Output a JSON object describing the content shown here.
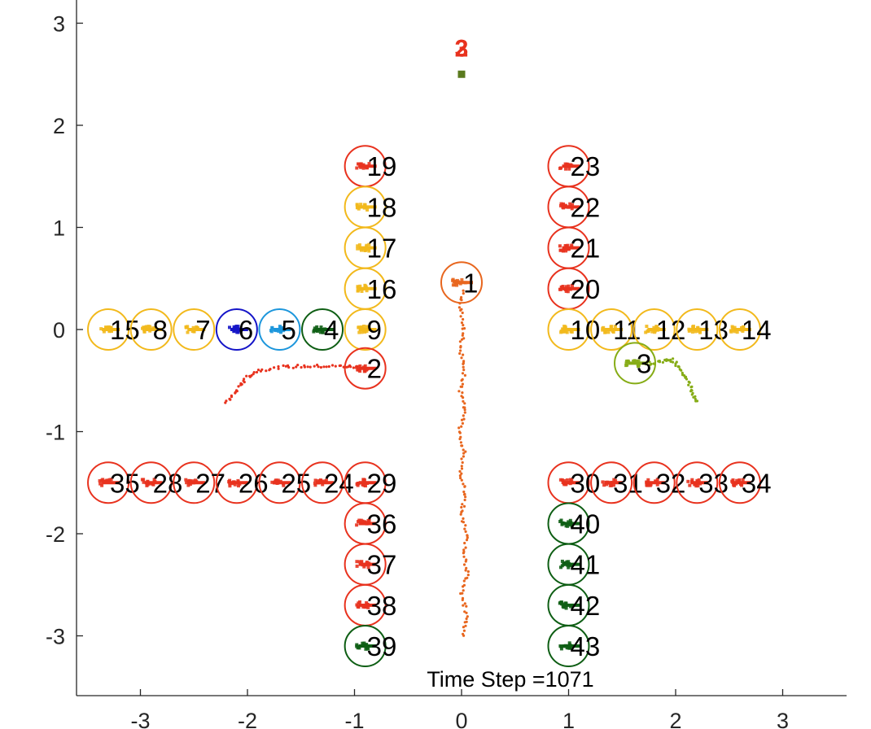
{
  "chart_data": {
    "type": "scatter",
    "title": "",
    "xlabel": "",
    "ylabel": "",
    "xlim": [
      -3.6,
      3.6
    ],
    "ylim": [
      -3.6,
      3.2
    ],
    "x_ticks": [
      -3,
      -2,
      -1,
      0,
      1,
      2,
      3
    ],
    "y_ticks": [
      -3,
      -2,
      -1,
      0,
      1,
      2,
      3
    ],
    "x_tick_labels": [
      "-3",
      "-2",
      "-1",
      "0",
      "1",
      "2",
      "3"
    ],
    "y_tick_labels": [
      "-3",
      "-2",
      "-1",
      "0",
      "1",
      "2",
      "3"
    ],
    "grid": false,
    "caption": "Time Step =1071",
    "goal_marker": {
      "x": 0.0,
      "y": 2.5,
      "color": "#5a7a1e",
      "labels": [
        "2",
        "3"
      ]
    },
    "colors": {
      "red": "#e8321e",
      "yellow": "#f2b91c",
      "dgreen": "#0e5e14",
      "blue": "#1414c8",
      "lblue": "#1c96dc",
      "orange": "#e8661e",
      "lgreen": "#86ac16"
    },
    "agents": [
      {
        "id": "19",
        "x": -0.9,
        "y": 1.6,
        "color": "red"
      },
      {
        "id": "18",
        "x": -0.9,
        "y": 1.2,
        "color": "yellow"
      },
      {
        "id": "17",
        "x": -0.9,
        "y": 0.8,
        "color": "yellow"
      },
      {
        "id": "16",
        "x": -0.9,
        "y": 0.4,
        "color": "yellow"
      },
      {
        "id": "9",
        "x": -0.9,
        "y": 0.0,
        "color": "yellow"
      },
      {
        "id": "2",
        "x": -0.9,
        "y": -0.38,
        "color": "red"
      },
      {
        "id": "23",
        "x": 1.0,
        "y": 1.6,
        "color": "red"
      },
      {
        "id": "22",
        "x": 1.0,
        "y": 1.2,
        "color": "red"
      },
      {
        "id": "21",
        "x": 1.0,
        "y": 0.8,
        "color": "red"
      },
      {
        "id": "20",
        "x": 1.0,
        "y": 0.4,
        "color": "red"
      },
      {
        "id": "10",
        "x": 1.0,
        "y": 0.0,
        "color": "yellow"
      },
      {
        "id": "11",
        "x": 1.4,
        "y": 0.0,
        "color": "yellow"
      },
      {
        "id": "12",
        "x": 1.8,
        "y": 0.0,
        "color": "yellow"
      },
      {
        "id": "13",
        "x": 2.2,
        "y": 0.0,
        "color": "yellow"
      },
      {
        "id": "14",
        "x": 2.6,
        "y": 0.0,
        "color": "yellow"
      },
      {
        "id": "15",
        "x": -3.3,
        "y": 0.0,
        "color": "yellow"
      },
      {
        "id": "8",
        "x": -2.9,
        "y": 0.0,
        "color": "yellow"
      },
      {
        "id": "7",
        "x": -2.5,
        "y": 0.0,
        "color": "yellow"
      },
      {
        "id": "6",
        "x": -2.1,
        "y": 0.0,
        "color": "blue"
      },
      {
        "id": "5",
        "x": -1.7,
        "y": 0.0,
        "color": "lblue"
      },
      {
        "id": "4",
        "x": -1.3,
        "y": 0.0,
        "color": "dgreen"
      },
      {
        "id": "1",
        "x": 0.0,
        "y": 0.46,
        "color": "orange"
      },
      {
        "id": "3",
        "x": 1.62,
        "y": -0.33,
        "color": "lgreen"
      },
      {
        "id": "35",
        "x": -3.3,
        "y": -1.5,
        "color": "red"
      },
      {
        "id": "28",
        "x": -2.9,
        "y": -1.5,
        "color": "red"
      },
      {
        "id": "27",
        "x": -2.5,
        "y": -1.5,
        "color": "red"
      },
      {
        "id": "26",
        "x": -2.1,
        "y": -1.5,
        "color": "red"
      },
      {
        "id": "25",
        "x": -1.7,
        "y": -1.5,
        "color": "red"
      },
      {
        "id": "24",
        "x": -1.3,
        "y": -1.5,
        "color": "red"
      },
      {
        "id": "29",
        "x": -0.9,
        "y": -1.5,
        "color": "red"
      },
      {
        "id": "36",
        "x": -0.9,
        "y": -1.9,
        "color": "red"
      },
      {
        "id": "37",
        "x": -0.9,
        "y": -2.3,
        "color": "red"
      },
      {
        "id": "38",
        "x": -0.9,
        "y": -2.7,
        "color": "red"
      },
      {
        "id": "39",
        "x": -0.9,
        "y": -3.1,
        "color": "dgreen"
      },
      {
        "id": "30",
        "x": 1.0,
        "y": -1.5,
        "color": "red"
      },
      {
        "id": "31",
        "x": 1.4,
        "y": -1.5,
        "color": "red"
      },
      {
        "id": "32",
        "x": 1.8,
        "y": -1.5,
        "color": "red"
      },
      {
        "id": "33",
        "x": 2.2,
        "y": -1.5,
        "color": "red"
      },
      {
        "id": "34",
        "x": 2.6,
        "y": -1.5,
        "color": "red"
      },
      {
        "id": "40",
        "x": 1.0,
        "y": -1.9,
        "color": "dgreen"
      },
      {
        "id": "41",
        "x": 1.0,
        "y": -2.3,
        "color": "dgreen"
      },
      {
        "id": "42",
        "x": 1.0,
        "y": -2.7,
        "color": "dgreen"
      },
      {
        "id": "43",
        "x": 1.0,
        "y": -3.1,
        "color": "dgreen"
      }
    ],
    "trajectories": [
      {
        "agent": "1",
        "color": "orange",
        "points": [
          [
            0.02,
            -3.0
          ],
          [
            0.05,
            -2.8
          ],
          [
            0.0,
            -2.6
          ],
          [
            0.06,
            -2.4
          ],
          [
            0.02,
            -2.2
          ],
          [
            0.05,
            -2.0
          ],
          [
            0.0,
            -1.8
          ],
          [
            0.04,
            -1.6
          ],
          [
            -0.01,
            -1.4
          ],
          [
            0.03,
            -1.2
          ],
          [
            -0.02,
            -1.0
          ],
          [
            0.03,
            -0.8
          ],
          [
            -0.01,
            -0.6
          ],
          [
            0.03,
            -0.4
          ],
          [
            -0.01,
            -0.2
          ],
          [
            0.02,
            0.0
          ],
          [
            -0.01,
            0.2
          ],
          [
            0.01,
            0.4
          ]
        ]
      },
      {
        "agent": "2",
        "color": "red",
        "points": [
          [
            -2.2,
            -0.72
          ],
          [
            -2.1,
            -0.6
          ],
          [
            -2.02,
            -0.48
          ],
          [
            -1.9,
            -0.4
          ],
          [
            -1.7,
            -0.37
          ],
          [
            -1.5,
            -0.36
          ],
          [
            -1.3,
            -0.36
          ],
          [
            -1.1,
            -0.36
          ],
          [
            -0.95,
            -0.37
          ]
        ]
      },
      {
        "agent": "3",
        "color": "lgreen",
        "points": [
          [
            2.2,
            -0.7
          ],
          [
            2.15,
            -0.6
          ],
          [
            2.1,
            -0.48
          ],
          [
            2.04,
            -0.38
          ],
          [
            1.98,
            -0.3
          ],
          [
            1.9,
            -0.3
          ],
          [
            1.8,
            -0.33
          ],
          [
            1.7,
            -0.33
          ]
        ]
      }
    ]
  }
}
